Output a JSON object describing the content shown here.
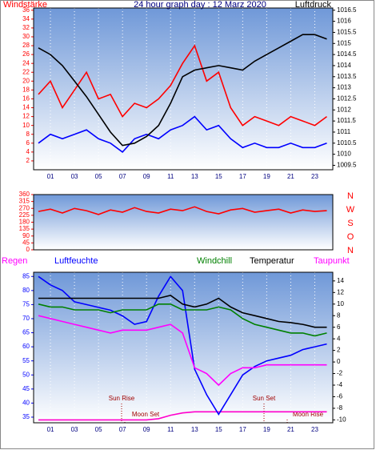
{
  "chart_data": [
    {
      "type": "line",
      "title": "24 hour graph day : 12 Marz 2020",
      "x": [
        0,
        1,
        2,
        3,
        4,
        5,
        6,
        7,
        8,
        9,
        10,
        11,
        12,
        13,
        14,
        15,
        16,
        17,
        18,
        19,
        20,
        21,
        22,
        23,
        24
      ],
      "xlim": [
        -0.4,
        24.5
      ],
      "xticks": [
        {
          "value": 1,
          "label": "01"
        },
        {
          "value": 3,
          "label": "03"
        },
        {
          "value": 5,
          "label": "05"
        },
        {
          "value": 7,
          "label": "07"
        },
        {
          "value": 9,
          "label": "09"
        },
        11,
        13,
        15,
        17,
        19,
        21,
        23
      ],
      "ylim": [
        0,
        36.5
      ],
      "yticks": [
        2,
        4,
        6,
        8,
        10,
        12,
        14,
        16,
        18,
        20,
        22,
        24,
        26,
        28,
        30,
        32,
        34,
        36
      ],
      "y2lim": [
        1009.3,
        1016.6
      ],
      "y2ticks": [
        1009.5,
        1010,
        1010.5,
        1011,
        1011.5,
        1012,
        1012.5,
        1013,
        1013.5,
        1014,
        1014.5,
        1015,
        1015.5,
        1016,
        1016.5
      ],
      "series": [
        {
          "name": "Windstärke",
          "color": "#ff0000",
          "values": [
            17,
            20,
            14,
            18,
            22,
            16,
            17,
            12,
            15,
            14,
            16,
            19,
            24,
            28,
            20,
            22,
            14,
            10,
            12,
            11,
            10,
            12,
            11,
            10,
            12
          ]
        },
        {
          "color": "#0000ff",
          "values": [
            6,
            8,
            7,
            8,
            9,
            7,
            6,
            4,
            7,
            8,
            7,
            9,
            10,
            12,
            9,
            10,
            7,
            5,
            6,
            5,
            5,
            6,
            5,
            5,
            6
          ]
        },
        {
          "name": "Luftdruck",
          "color": "#000000",
          "axis": "y2",
          "values": [
            1014.8,
            1014.5,
            1014.0,
            1013.3,
            1012.6,
            1011.8,
            1011.0,
            1010.4,
            1010.5,
            1010.8,
            1011.3,
            1012.3,
            1013.5,
            1013.8,
            1013.9,
            1014.0,
            1013.9,
            1013.8,
            1014.2,
            1014.5,
            1014.8,
            1015.1,
            1015.4,
            1015.4,
            1015.2
          ]
        }
      ]
    },
    {
      "type": "line",
      "x": [
        0,
        1,
        2,
        3,
        4,
        5,
        6,
        7,
        8,
        9,
        10,
        11,
        12,
        13,
        14,
        15,
        16,
        17,
        18,
        19,
        20,
        21,
        22,
        23,
        24
      ],
      "xlim": [
        -0.4,
        24.5
      ],
      "ylim": [
        0,
        360
      ],
      "yticks": [
        0,
        45,
        90,
        135,
        180,
        225,
        270,
        315,
        360
      ],
      "compass": [
        "N",
        "W",
        "S",
        "O",
        "N"
      ],
      "series": [
        {
          "color": "#ff0000",
          "values": [
            250,
            265,
            240,
            270,
            255,
            230,
            260,
            245,
            275,
            250,
            240,
            265,
            255,
            280,
            250,
            235,
            260,
            270,
            245,
            255,
            265,
            240,
            260,
            250,
            255
          ]
        }
      ]
    },
    {
      "type": "line",
      "x": [
        0,
        1,
        2,
        3,
        4,
        5,
        6,
        7,
        8,
        9,
        10,
        11,
        12,
        13,
        14,
        15,
        16,
        17,
        18,
        19,
        20,
        21,
        22,
        23,
        24
      ],
      "xlim": [
        -0.4,
        24.5
      ],
      "xticks": [
        {
          "value": 1,
          "label": "01"
        },
        {
          "value": 3,
          "label": "03"
        },
        {
          "value": 5,
          "label": "05"
        },
        {
          "value": 7,
          "label": "07"
        },
        {
          "value": 9,
          "label": "09"
        },
        11,
        13,
        15,
        17,
        19,
        21,
        23
      ],
      "ylim": [
        33,
        86.5
      ],
      "yticks": [
        35,
        40,
        45,
        50,
        55,
        60,
        65,
        70,
        75,
        80,
        85
      ],
      "y2lim": [
        -10.5,
        15.5
      ],
      "y2ticks": [
        -10,
        -8,
        -6,
        -4,
        -2,
        0,
        2,
        4,
        6,
        8,
        10,
        12,
        14
      ],
      "annotations": [
        "Sun Rise",
        "Moon Set",
        "Sun Set",
        "Moon Rise"
      ],
      "series": [
        {
          "name": "Regen",
          "color": "#ff00cc",
          "axis": "y2",
          "values": [
            -10,
            -10,
            -10,
            -10,
            -10,
            -10,
            -10,
            -10,
            -10,
            -10,
            -9.8,
            -9.2,
            -8.8,
            -8.6,
            -8.6,
            -8.6,
            -8.6,
            -8.6,
            -8.6,
            -8.6,
            -8.6,
            -8.6,
            -8.6,
            -8.6,
            -8.6
          ]
        },
        {
          "name": "Luftfeuchte",
          "color": "#0000ff",
          "values": [
            85,
            82,
            80,
            76,
            75,
            74,
            73,
            71,
            68,
            69,
            78,
            85,
            80,
            52,
            43,
            36,
            43,
            50,
            53,
            55,
            56,
            57,
            59,
            60,
            61
          ]
        },
        {
          "name": "Windchill",
          "color": "#008000",
          "axis": "y2",
          "values": [
            10,
            9.5,
            9.5,
            9,
            9,
            9,
            8.5,
            9,
            9,
            9,
            10,
            10,
            9,
            9,
            9,
            9.5,
            9,
            7.5,
            6.5,
            6,
            5.5,
            5,
            5,
            4.5,
            5
          ]
        },
        {
          "name": "Temperatur",
          "color": "#000000",
          "axis": "y2",
          "values": [
            11,
            11,
            11,
            11,
            11,
            11,
            11,
            11,
            11,
            11,
            11,
            11.5,
            10,
            9.5,
            10,
            11,
            9.5,
            8.5,
            8,
            7.5,
            7,
            6.8,
            6.5,
            6,
            6
          ]
        },
        {
          "name": "Taupunkt",
          "color": "#ff00ff",
          "axis": "y2",
          "values": [
            8,
            7.5,
            7,
            6.5,
            6,
            5.5,
            5,
            5.5,
            5.5,
            5.5,
            6,
            6.5,
            5,
            -1,
            -2,
            -4,
            -2,
            -1,
            -1,
            -0.5,
            -0.5,
            -0.5,
            -0.5,
            -0.5,
            -0.5
          ]
        }
      ]
    }
  ]
}
